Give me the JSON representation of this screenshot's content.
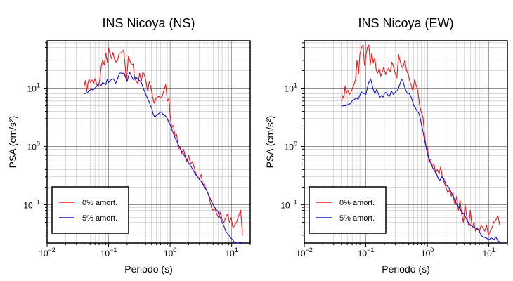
{
  "figure": {
    "colors": {
      "undamped": "#e41a1c",
      "damped": "#1010d0",
      "axes": "#000000",
      "grid_major": "#808080",
      "grid_minor": "#b4b4b4"
    }
  },
  "chart_data": [
    {
      "type": "line",
      "title": "INS Nicoya (NS)",
      "xlabel": "Periodo (s)",
      "ylabel": "PSA (cm/s²)",
      "xscale": "log",
      "yscale": "log",
      "xlim": [
        0.01,
        20
      ],
      "ylim": [
        0.022,
        65
      ],
      "x_ticks": [
        {
          "value": 0.01,
          "base": "10",
          "exp": "−2"
        },
        {
          "value": 0.1,
          "base": "10",
          "exp": "−1"
        },
        {
          "value": 1,
          "base": "10",
          "exp": "0"
        },
        {
          "value": 10,
          "base": "10",
          "exp": "1"
        }
      ],
      "y_ticks": [
        {
          "value": 0.1,
          "base": "10",
          "exp": "−1"
        },
        {
          "value": 1,
          "base": "10",
          "exp": "0"
        },
        {
          "value": 10,
          "base": "10",
          "exp": "1"
        }
      ],
      "grid": true,
      "legend": "bottom-left",
      "series": [
        {
          "name": "0% amort.",
          "color": "#e41a1c",
          "x": [
            0.04,
            0.042,
            0.044,
            0.046,
            0.048,
            0.051,
            0.054,
            0.057,
            0.06,
            0.064,
            0.068,
            0.072,
            0.076,
            0.08,
            0.085,
            0.09,
            0.095,
            0.1,
            0.106,
            0.112,
            0.118,
            0.125,
            0.132,
            0.14,
            0.148,
            0.156,
            0.165,
            0.175,
            0.185,
            0.195,
            0.21,
            0.22,
            0.235,
            0.25,
            0.265,
            0.28,
            0.3,
            0.32,
            0.34,
            0.36,
            0.38,
            0.4,
            0.43,
            0.46,
            0.49,
            0.52,
            0.55,
            0.58,
            0.62,
            0.66,
            0.7,
            0.75,
            0.8,
            0.85,
            0.9,
            0.95,
            1.0,
            1.06,
            1.13,
            1.2,
            1.28,
            1.36,
            1.45,
            1.55,
            1.65,
            1.75,
            1.85,
            2.0,
            2.15,
            2.3,
            2.45,
            2.6,
            2.8,
            3.0,
            3.2,
            3.4,
            3.6,
            3.85,
            4.1,
            4.4,
            4.7,
            5.0,
            5.35,
            5.7,
            6.1,
            6.5,
            7.0,
            7.5,
            8.0,
            8.6,
            9.2,
            9.8,
            10.5,
            11.2,
            12.0,
            13.0,
            14.0,
            15.0
          ],
          "y": [
            10.8,
            13.5,
            8.7,
            12.0,
            14.2,
            12.4,
            13.8,
            12.0,
            14.5,
            11.6,
            10.6,
            14.0,
            24.0,
            30.0,
            25.0,
            40.0,
            28.0,
            48.0,
            38.0,
            32.0,
            41.0,
            31.0,
            28.0,
            30.0,
            39.0,
            40.0,
            42.0,
            45.0,
            26.0,
            13.0,
            35.0,
            30.0,
            25.0,
            26.0,
            15.0,
            13.0,
            12.0,
            18.0,
            13.0,
            19.0,
            17.0,
            14.0,
            9.0,
            13.0,
            10.0,
            7.0,
            5.5,
            6.5,
            7.0,
            7.2,
            6.8,
            7.5,
            9.5,
            11.5,
            6.0,
            6.6,
            3.6,
            2.1,
            2.3,
            1.5,
            1.6,
            0.9,
            1.0,
            0.75,
            0.9,
            0.7,
            0.55,
            0.7,
            0.5,
            0.55,
            0.45,
            0.35,
            0.3,
            0.28,
            0.33,
            0.22,
            0.23,
            0.18,
            0.16,
            0.12,
            0.09,
            0.08,
            0.085,
            0.07,
            0.06,
            0.075,
            0.055,
            0.05,
            0.06,
            0.07,
            0.05,
            0.06,
            0.04,
            0.045,
            0.05,
            0.065,
            0.08,
            0.03
          ]
        },
        {
          "name": "5% amort.",
          "color": "#1010d0",
          "x": [
            0.04,
            0.044,
            0.048,
            0.052,
            0.056,
            0.06,
            0.065,
            0.07,
            0.075,
            0.08,
            0.085,
            0.09,
            0.095,
            0.1,
            0.11,
            0.12,
            0.13,
            0.14,
            0.15,
            0.16,
            0.17,
            0.18,
            0.19,
            0.2,
            0.21,
            0.22,
            0.23,
            0.24,
            0.25,
            0.26,
            0.28,
            0.3,
            0.32,
            0.34,
            0.36,
            0.38,
            0.4,
            0.42,
            0.45,
            0.48,
            0.5,
            0.53,
            0.56,
            0.6,
            0.64,
            0.68,
            0.72,
            0.76,
            0.8,
            0.85,
            0.9,
            0.95,
            1.0,
            1.1,
            1.2,
            1.3,
            1.4,
            1.5,
            1.6,
            1.7,
            1.85,
            2.0,
            2.2,
            2.4,
            2.6,
            2.8,
            3.0,
            3.3,
            3.6,
            3.9,
            4.2,
            4.6,
            5.0,
            5.5,
            6.0,
            6.5,
            7.0,
            7.5,
            8.0,
            9.0,
            10.0,
            11.0,
            12.0,
            13.0,
            14.0,
            15.0
          ],
          "y": [
            8.0,
            8.2,
            8.9,
            9.6,
            9.3,
            10.0,
            11.0,
            12.0,
            11.0,
            12.5,
            12.0,
            11.5,
            14.0,
            12.5,
            14.0,
            14.5,
            12.0,
            14.5,
            18.0,
            18.2,
            18.0,
            17.8,
            15.0,
            13.0,
            16.0,
            18.5,
            17.0,
            15.5,
            14.0,
            14.5,
            15.5,
            14.0,
            13.5,
            12.5,
            10.5,
            9.0,
            8.0,
            7.0,
            6.0,
            5.0,
            4.6,
            3.6,
            3.2,
            3.4,
            3.6,
            3.8,
            3.9,
            3.6,
            3.5,
            3.3,
            3.0,
            2.6,
            2.4,
            1.8,
            1.4,
            1.2,
            1.0,
            0.85,
            0.8,
            0.7,
            0.6,
            0.52,
            0.45,
            0.38,
            0.33,
            0.3,
            0.27,
            0.24,
            0.2,
            0.18,
            0.15,
            0.12,
            0.1,
            0.085,
            0.075,
            0.06,
            0.05,
            0.043,
            0.035,
            0.03,
            0.026,
            0.023,
            0.022,
            0.022,
            0.023,
            0.021
          ]
        }
      ]
    },
    {
      "type": "line",
      "title": "INS Nicoya (EW)",
      "xlabel": "Periodo (s)",
      "ylabel": "PSA (cm/s²)",
      "xscale": "log",
      "yscale": "log",
      "xlim": [
        0.01,
        20
      ],
      "ylim": [
        0.022,
        65
      ],
      "x_ticks": [
        {
          "value": 0.01,
          "base": "10",
          "exp": "−2"
        },
        {
          "value": 0.1,
          "base": "10",
          "exp": "−1"
        },
        {
          "value": 1,
          "base": "10",
          "exp": "0"
        },
        {
          "value": 10,
          "base": "10",
          "exp": "1"
        }
      ],
      "y_ticks": [
        {
          "value": 0.1,
          "base": "10",
          "exp": "−1"
        },
        {
          "value": 1,
          "base": "10",
          "exp": "0"
        },
        {
          "value": 10,
          "base": "10",
          "exp": "1"
        }
      ],
      "grid": true,
      "legend": "bottom-left",
      "series": [
        {
          "name": "0% amort.",
          "color": "#e41a1c",
          "x": [
            0.04,
            0.042,
            0.044,
            0.046,
            0.048,
            0.051,
            0.054,
            0.057,
            0.06,
            0.064,
            0.068,
            0.072,
            0.076,
            0.08,
            0.085,
            0.09,
            0.095,
            0.1,
            0.106,
            0.112,
            0.118,
            0.125,
            0.132,
            0.14,
            0.148,
            0.156,
            0.165,
            0.175,
            0.185,
            0.195,
            0.21,
            0.22,
            0.235,
            0.25,
            0.265,
            0.28,
            0.3,
            0.32,
            0.34,
            0.36,
            0.38,
            0.4,
            0.43,
            0.46,
            0.49,
            0.52,
            0.55,
            0.58,
            0.62,
            0.66,
            0.7,
            0.75,
            0.8,
            0.85,
            0.9,
            0.95,
            1.0,
            1.06,
            1.13,
            1.2,
            1.28,
            1.36,
            1.45,
            1.55,
            1.65,
            1.75,
            1.85,
            2.0,
            2.15,
            2.3,
            2.45,
            2.6,
            2.8,
            3.0,
            3.2,
            3.4,
            3.6,
            3.85,
            4.1,
            4.4,
            4.7,
            5.0,
            5.35,
            5.7,
            6.1,
            6.5,
            7.0,
            7.5,
            8.0,
            8.6,
            9.2,
            9.8,
            10.5,
            11.2,
            12.0,
            13.0,
            14.0,
            15.0
          ],
          "y": [
            6.0,
            7.5,
            6.6,
            11.0,
            8.0,
            9.2,
            7.8,
            8.4,
            9.6,
            11.5,
            14.0,
            30.0,
            17.5,
            38.0,
            50.0,
            55.0,
            25.0,
            35.0,
            50.0,
            55.0,
            25.0,
            40.0,
            27.0,
            33.0,
            20.0,
            18.0,
            22.0,
            16.0,
            19.0,
            23.0,
            17.0,
            20.0,
            22.0,
            19.0,
            28.0,
            24.0,
            18.0,
            15.0,
            38.0,
            29.0,
            24.0,
            22.0,
            30.0,
            20.0,
            17.0,
            13.0,
            11.0,
            9.0,
            14.0,
            11.0,
            9.0,
            5.0,
            3.8,
            3.2,
            1.6,
            1.0,
            1.0,
            0.55,
            0.6,
            0.45,
            0.5,
            0.35,
            0.4,
            0.34,
            0.45,
            0.3,
            0.25,
            0.2,
            0.16,
            0.18,
            0.14,
            0.16,
            0.1,
            0.14,
            0.08,
            0.12,
            0.07,
            0.05,
            0.1,
            0.06,
            0.045,
            0.08,
            0.04,
            0.05,
            0.035,
            0.04,
            0.034,
            0.045,
            0.04,
            0.035,
            0.045,
            0.03,
            0.035,
            0.04,
            0.05,
            0.055,
            0.065,
            0.045
          ]
        },
        {
          "name": "5% amort.",
          "color": "#1010d0",
          "x": [
            0.04,
            0.044,
            0.048,
            0.052,
            0.056,
            0.06,
            0.065,
            0.07,
            0.075,
            0.08,
            0.085,
            0.09,
            0.095,
            0.1,
            0.11,
            0.12,
            0.13,
            0.14,
            0.15,
            0.16,
            0.17,
            0.18,
            0.19,
            0.2,
            0.21,
            0.22,
            0.23,
            0.24,
            0.25,
            0.26,
            0.28,
            0.3,
            0.32,
            0.34,
            0.36,
            0.38,
            0.4,
            0.42,
            0.45,
            0.48,
            0.5,
            0.53,
            0.56,
            0.6,
            0.64,
            0.68,
            0.72,
            0.76,
            0.8,
            0.85,
            0.9,
            0.95,
            1.0,
            1.1,
            1.2,
            1.3,
            1.4,
            1.5,
            1.6,
            1.7,
            1.85,
            2.0,
            2.2,
            2.4,
            2.6,
            2.8,
            3.0,
            3.3,
            3.6,
            3.9,
            4.2,
            4.6,
            5.0,
            5.5,
            6.0,
            6.5,
            7.0,
            7.5,
            8.0,
            9.0,
            10.0,
            11.0,
            12.0,
            13.0,
            14.0,
            15.0
          ],
          "y": [
            4.9,
            5.0,
            5.0,
            5.3,
            5.4,
            6.0,
            6.4,
            6.8,
            6.4,
            7.6,
            8.6,
            8.0,
            8.2,
            7.8,
            12.0,
            14.5,
            10.0,
            8.0,
            9.5,
            8.0,
            7.0,
            7.5,
            7.0,
            8.0,
            8.5,
            8.0,
            7.5,
            7.2,
            7.8,
            9.0,
            7.8,
            8.5,
            9.0,
            10.0,
            12.0,
            14.0,
            13.5,
            11.0,
            9.0,
            8.0,
            8.2,
            7.5,
            6.5,
            5.0,
            4.6,
            4.0,
            3.8,
            3.2,
            2.4,
            1.8,
            1.3,
            1.0,
            0.75,
            0.55,
            0.45,
            0.38,
            0.35,
            0.28,
            0.26,
            0.3,
            0.28,
            0.22,
            0.2,
            0.17,
            0.14,
            0.12,
            0.1,
            0.09,
            0.075,
            0.07,
            0.06,
            0.05,
            0.045,
            0.042,
            0.04,
            0.038,
            0.035,
            0.03,
            0.028,
            0.027,
            0.025,
            0.027,
            0.025,
            0.028,
            0.024,
            0.023
          ]
        }
      ]
    }
  ]
}
